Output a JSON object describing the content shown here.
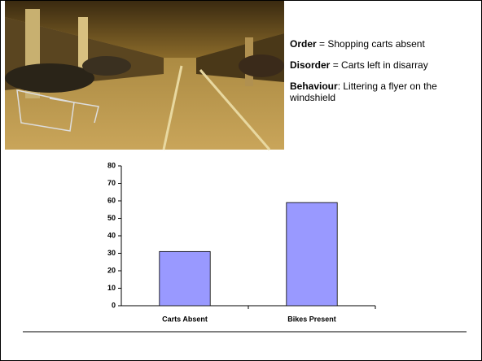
{
  "slide_text": [
    {
      "term": "Order",
      "rest": " = Shopping carts absent"
    },
    {
      "term": "Disorder",
      "rest": " = Carts left in disarray"
    },
    {
      "term": "Behaviour",
      "rest": ": Littering a flyer on the windshield"
    }
  ],
  "chart_data": {
    "type": "bar",
    "categories": [
      "Carts Absent",
      "Bikes Present"
    ],
    "values": [
      31,
      59
    ],
    "color": "#9999ff",
    "ylim": [
      0,
      80
    ],
    "yticks": [
      0,
      10,
      20,
      30,
      40,
      50,
      60,
      70,
      80
    ],
    "grid": false
  }
}
